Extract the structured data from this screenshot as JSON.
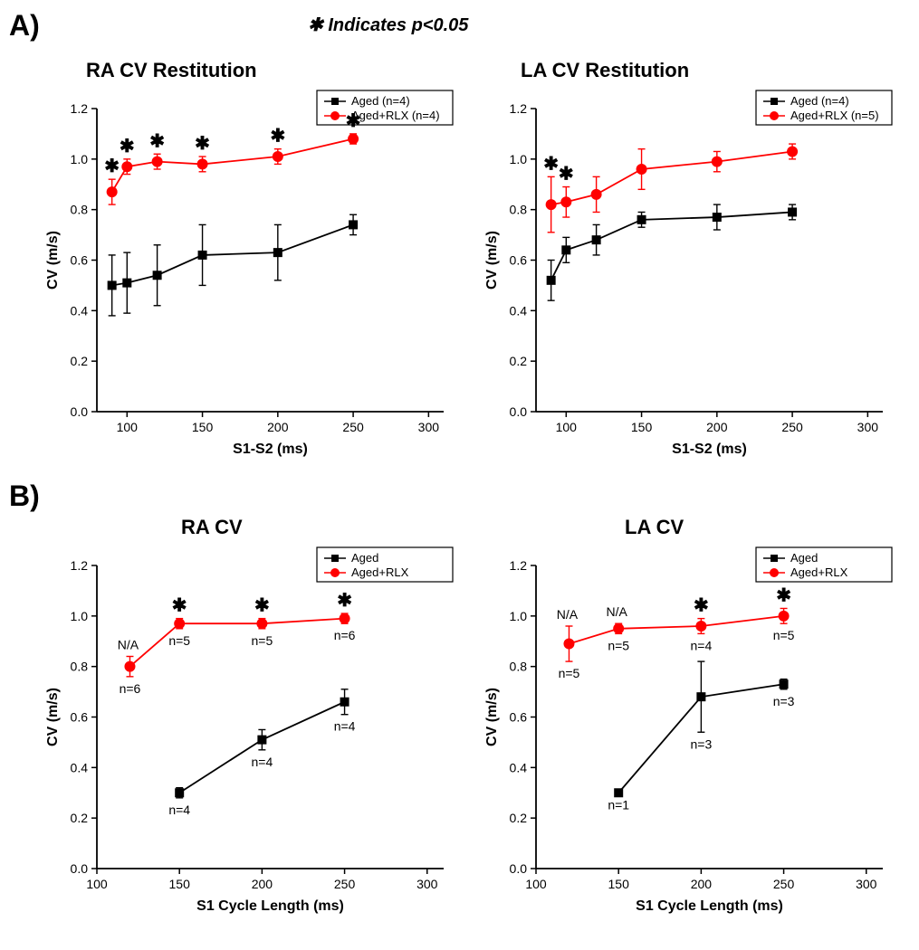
{
  "panel_A_label": "A)",
  "panel_B_label": "B)",
  "note_text": "✱ Indicates p<0.05",
  "colors": {
    "aged": "#000000",
    "rlx": "#ff0000",
    "bg": "#ffffff"
  },
  "charts": {
    "A_left": {
      "title": "RA CV Restitution",
      "xlabel": "S1-S2 (ms)",
      "ylabel": "CV (m/s)",
      "xlim": [
        80,
        310
      ],
      "ylim": [
        0.0,
        1.2
      ],
      "xticks": [
        100,
        150,
        200,
        250,
        300
      ],
      "yticks": [
        0.0,
        0.2,
        0.4,
        0.6,
        0.8,
        1.0,
        1.2
      ],
      "legend": [
        "Aged (n=4)",
        "Aged+RLX (n=4)"
      ],
      "series": {
        "aged": {
          "color": "#000000",
          "marker": "square",
          "points": [
            {
              "x": 90,
              "y": 0.5,
              "err": 0.12
            },
            {
              "x": 100,
              "y": 0.51,
              "err": 0.12
            },
            {
              "x": 120,
              "y": 0.54,
              "err": 0.12
            },
            {
              "x": 150,
              "y": 0.62,
              "err": 0.12
            },
            {
              "x": 200,
              "y": 0.63,
              "err": 0.11
            },
            {
              "x": 250,
              "y": 0.74,
              "err": 0.04
            }
          ]
        },
        "rlx": {
          "color": "#ff0000",
          "marker": "circle",
          "points": [
            {
              "x": 90,
              "y": 0.87,
              "err": 0.05,
              "star": true
            },
            {
              "x": 100,
              "y": 0.97,
              "err": 0.03,
              "star": true
            },
            {
              "x": 120,
              "y": 0.99,
              "err": 0.03,
              "star": true
            },
            {
              "x": 150,
              "y": 0.98,
              "err": 0.03,
              "star": true
            },
            {
              "x": 200,
              "y": 1.01,
              "err": 0.03,
              "star": true
            },
            {
              "x": 250,
              "y": 1.08,
              "err": 0.02,
              "star": true
            }
          ]
        }
      }
    },
    "A_right": {
      "title": "LA CV Restitution",
      "xlabel": "S1-S2 (ms)",
      "ylabel": "CV (m/s)",
      "xlim": [
        80,
        310
      ],
      "ylim": [
        0.0,
        1.2
      ],
      "xticks": [
        100,
        150,
        200,
        250,
        300
      ],
      "yticks": [
        0.0,
        0.2,
        0.4,
        0.6,
        0.8,
        1.0,
        1.2
      ],
      "legend": [
        "Aged (n=4)",
        "Aged+RLX (n=5)"
      ],
      "series": {
        "aged": {
          "color": "#000000",
          "marker": "square",
          "points": [
            {
              "x": 90,
              "y": 0.52,
              "err": 0.08
            },
            {
              "x": 100,
              "y": 0.64,
              "err": 0.05
            },
            {
              "x": 120,
              "y": 0.68,
              "err": 0.06
            },
            {
              "x": 150,
              "y": 0.76,
              "err": 0.03
            },
            {
              "x": 200,
              "y": 0.77,
              "err": 0.05
            },
            {
              "x": 250,
              "y": 0.79,
              "err": 0.03
            }
          ]
        },
        "rlx": {
          "color": "#ff0000",
          "marker": "circle",
          "points": [
            {
              "x": 90,
              "y": 0.82,
              "err": 0.11,
              "star": true
            },
            {
              "x": 100,
              "y": 0.83,
              "err": 0.06,
              "star": true
            },
            {
              "x": 120,
              "y": 0.86,
              "err": 0.07
            },
            {
              "x": 150,
              "y": 0.96,
              "err": 0.08
            },
            {
              "x": 200,
              "y": 0.99,
              "err": 0.04
            },
            {
              "x": 250,
              "y": 1.03,
              "err": 0.03
            }
          ]
        }
      }
    },
    "B_left": {
      "title": "RA CV",
      "xlabel": "S1 Cycle Length (ms)",
      "ylabel": "CV (m/s)",
      "xlim": [
        100,
        310
      ],
      "ylim": [
        0.0,
        1.2
      ],
      "xticks": [
        100,
        150,
        200,
        250,
        300
      ],
      "yticks": [
        0.0,
        0.2,
        0.4,
        0.6,
        0.8,
        1.0,
        1.2
      ],
      "legend": [
        "Aged",
        "Aged+RLX"
      ],
      "series": {
        "aged": {
          "color": "#000000",
          "marker": "square",
          "points": [
            {
              "x": 150,
              "y": 0.3,
              "err": 0.02,
              "label_below": "n=4"
            },
            {
              "x": 200,
              "y": 0.51,
              "err": 0.04,
              "label_below": "n=4"
            },
            {
              "x": 250,
              "y": 0.66,
              "err": 0.05,
              "label_below": "n=4"
            }
          ]
        },
        "rlx": {
          "color": "#ff0000",
          "marker": "circle",
          "points": [
            {
              "x": 120,
              "y": 0.8,
              "err": 0.04,
              "label_above": "N/A",
              "label_below": "n=6"
            },
            {
              "x": 150,
              "y": 0.97,
              "err": 0.02,
              "star": true,
              "label_below": "n=5"
            },
            {
              "x": 200,
              "y": 0.97,
              "err": 0.02,
              "star": true,
              "label_below": "n=5"
            },
            {
              "x": 250,
              "y": 0.99,
              "err": 0.02,
              "star": true,
              "label_below": "n=6"
            }
          ]
        }
      }
    },
    "B_right": {
      "title": "LA CV",
      "xlabel": "S1 Cycle Length (ms)",
      "ylabel": "CV (m/s)",
      "xlim": [
        100,
        310
      ],
      "ylim": [
        0.0,
        1.2
      ],
      "xticks": [
        100,
        150,
        200,
        250,
        300
      ],
      "yticks": [
        0.0,
        0.2,
        0.4,
        0.6,
        0.8,
        1.0,
        1.2
      ],
      "legend": [
        "Aged",
        "Aged+RLX"
      ],
      "series": {
        "aged": {
          "color": "#000000",
          "marker": "square",
          "points": [
            {
              "x": 150,
              "y": 0.3,
              "err": 0.0,
              "label_below": "n=1"
            },
            {
              "x": 200,
              "y": 0.68,
              "err": 0.14,
              "label_below": "n=3"
            },
            {
              "x": 250,
              "y": 0.73,
              "err": 0.02,
              "label_below": "n=3"
            }
          ]
        },
        "rlx": {
          "color": "#ff0000",
          "marker": "circle",
          "points": [
            {
              "x": 120,
              "y": 0.89,
              "err": 0.07,
              "label_above": "N/A",
              "label_below": "n=5"
            },
            {
              "x": 150,
              "y": 0.95,
              "err": 0.02,
              "label_above": "N/A",
              "label_below": "n=5"
            },
            {
              "x": 200,
              "y": 0.96,
              "err": 0.03,
              "star": true,
              "label_below": "n=4"
            },
            {
              "x": 250,
              "y": 1.0,
              "err": 0.03,
              "star": true,
              "label_below": "n=5"
            }
          ]
        }
      }
    }
  }
}
